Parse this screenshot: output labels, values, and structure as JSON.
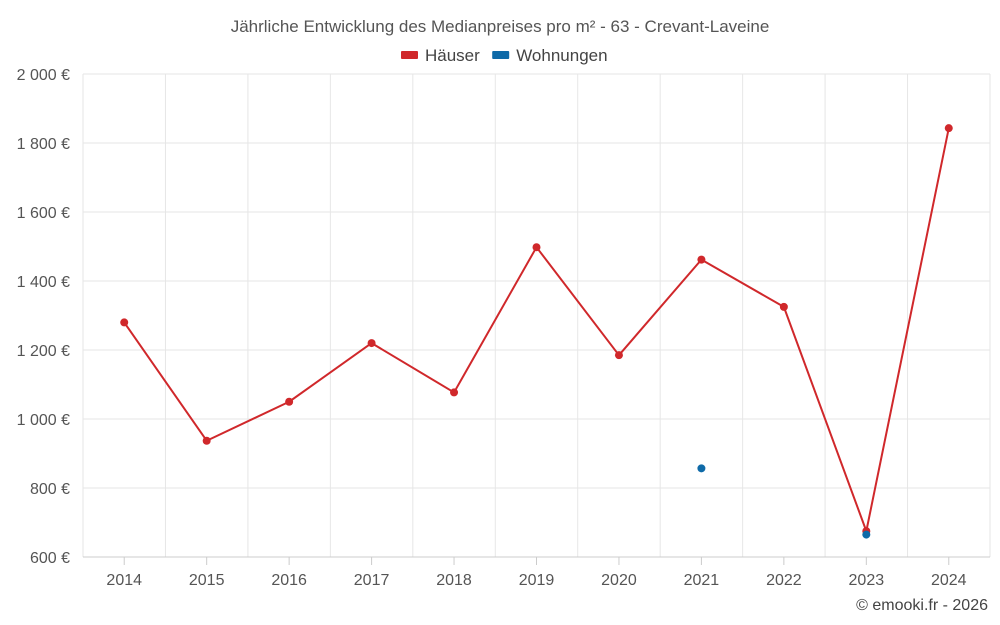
{
  "chart_data": {
    "type": "line",
    "title": "Jährliche Entwicklung des Medianpreises pro m² - 63 - Crevant-Laveine",
    "categories": [
      "2014",
      "2015",
      "2016",
      "2017",
      "2018",
      "2019",
      "2020",
      "2021",
      "2022",
      "2023",
      "2024"
    ],
    "y_ticks": [
      600,
      800,
      1000,
      1200,
      1400,
      1600,
      1800,
      2000
    ],
    "y_tick_labels": [
      "600 €",
      "800 €",
      "1 000 €",
      "1 200 €",
      "1 400 €",
      "1 600 €",
      "1 800 €",
      "2 000 €"
    ],
    "ylim": [
      600,
      2000
    ],
    "grid": true,
    "legend_position": "top",
    "series": [
      {
        "name": "Häuser",
        "color": "#d0282b",
        "connect": true,
        "values": [
          1280,
          937,
          1050,
          1220,
          1077,
          1498,
          1185,
          1462,
          1325,
          675,
          1843
        ]
      },
      {
        "name": "Wohnungen",
        "color": "#0e6aa8",
        "connect": false,
        "values": [
          null,
          null,
          null,
          null,
          null,
          null,
          null,
          857,
          null,
          665,
          null
        ]
      }
    ]
  },
  "credit": "© emooki.fr - 2026"
}
